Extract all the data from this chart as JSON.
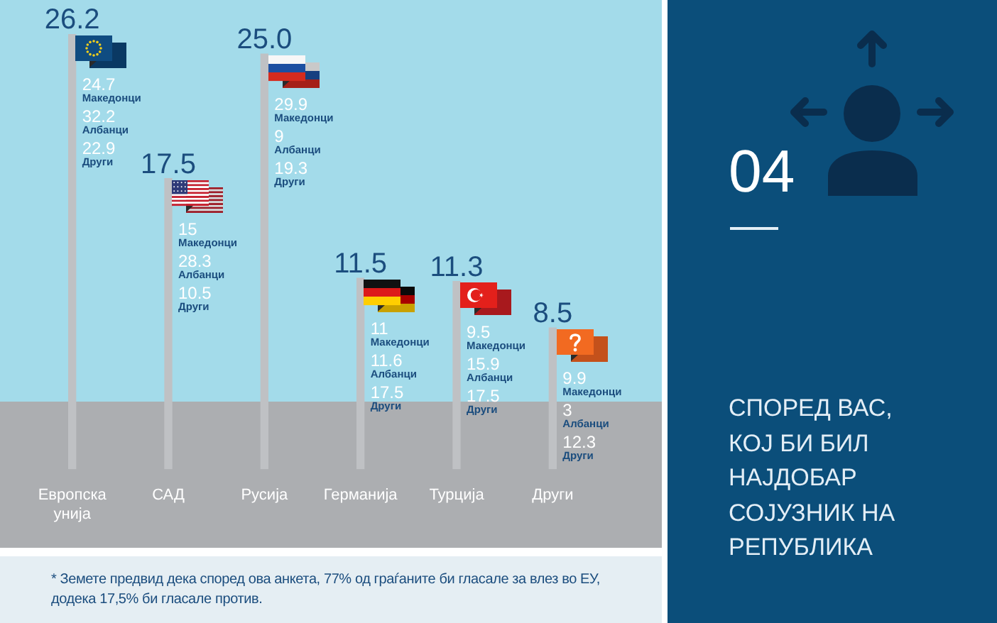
{
  "chart_data": {
    "type": "bar",
    "title": "СПОРЕД ВАС, КОЈ БИ БИЛ НАЈДОБАР СОЈУЗНИК НА РЕПУБЛИКА",
    "subtitle": "04",
    "categories": [
      "Европска унија",
      "САД",
      "Русија",
      "Германија",
      "Турција",
      "Други"
    ],
    "values": [
      26.2,
      17.5,
      25.0,
      11.5,
      11.3,
      8.5
    ],
    "value_labels": [
      "26.2",
      "17.5",
      "25.0",
      "11.5",
      "11.3",
      "8.5"
    ],
    "color": "#bfc1c4",
    "tick_labels": "x",
    "annotations": [
      {
        "text": "24.7",
        "x": "Европска унија"
      },
      {
        "text": "Македонци",
        "x": "Европска унија"
      },
      {
        "text": "32.2",
        "x": "Европска унија"
      },
      {
        "text": "Албанци",
        "x": "Европска унија"
      },
      {
        "text": "22.9",
        "x": "Европска унија"
      },
      {
        "text": "Други",
        "x": "Европска унија"
      },
      {
        "text": "15",
        "x": "САД"
      },
      {
        "text": "Македонци",
        "x": "САД"
      },
      {
        "text": "28.3",
        "x": "САД"
      },
      {
        "text": "Албанци",
        "x": "САД"
      },
      {
        "text": "10.5",
        "x": "САД"
      },
      {
        "text": "Други",
        "x": "САД"
      },
      {
        "text": "29.9",
        "x": "Русија"
      },
      {
        "text": "Македонци",
        "x": "Русија"
      },
      {
        "text": "9",
        "x": "Русија"
      },
      {
        "text": "Албанци",
        "x": "Русија"
      },
      {
        "text": "19.3",
        "x": "Русија"
      },
      {
        "text": "Други",
        "x": "Русија"
      },
      {
        "text": "11",
        "x": "Германија"
      },
      {
        "text": "Македонци",
        "x": "Германија"
      },
      {
        "text": "11.6",
        "x": "Германија"
      },
      {
        "text": "Албанци",
        "x": "Германија"
      },
      {
        "text": "17.5",
        "x": "Германија"
      },
      {
        "text": "Други",
        "x": "Германија"
      },
      {
        "text": "9.5",
        "x": "Турција"
      },
      {
        "text": "Македонци",
        "x": "Турција"
      },
      {
        "text": "15.9",
        "x": "Турција"
      },
      {
        "text": "Албанци",
        "x": "Турција"
      },
      {
        "text": "17.5",
        "x": "Турција"
      },
      {
        "text": "Други",
        "x": "Турција"
      },
      {
        "text": "9.9",
        "x": "Други"
      },
      {
        "text": "Македонци",
        "x": "Други"
      },
      {
        "text": "3",
        "x": "Други"
      },
      {
        "text": "Албанци",
        "x": "Други"
      },
      {
        "text": "12.3",
        "x": "Други"
      },
      {
        "text": "Други",
        "x": "Други"
      },
      "* Земете предвид дека според ова анкета, 77% од граѓаните би гласале за влез во ЕУ, додека 17,5% би гласале против."
    ]
  }
}
